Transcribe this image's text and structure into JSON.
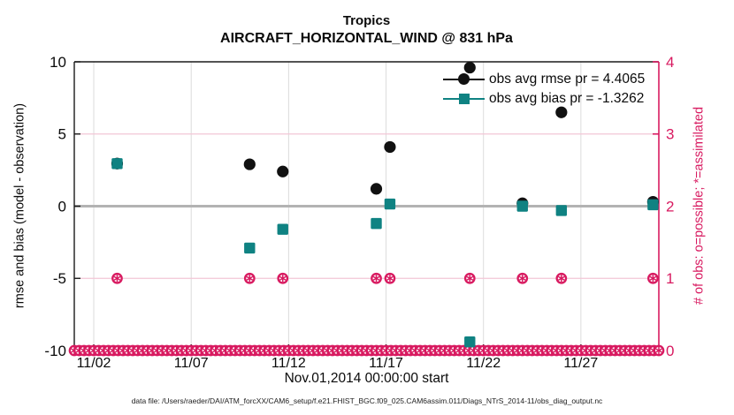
{
  "title": {
    "line1": "Tropics",
    "line2": "AIRCRAFT_HORIZONTAL_WIND @ 831 hPa"
  },
  "caption": "data file: /Users/raeder/DAI/ATM_forcXX/CAM6_setup/f.e21.FHIST_BGC.f09_025.CAM6assim.011/Diags_NTrS_2014-11/obs_diag_output.nc",
  "colors": {
    "pink": "#d81a60",
    "teal": "#0f8282",
    "black_marker": "#111111",
    "zero_line": "#b3b3b3",
    "v_grid": "#dcdcdc",
    "h_grid_pink": "#f3c6d6",
    "spine": "#1a1a1a"
  },
  "chart_data": {
    "type": "scatter",
    "title": "Tropics — AIRCRAFT_HORIZONTAL_WIND @ 831 hPa",
    "x_axis": {
      "label": "Nov.01,2014 00:00:00 start",
      "range_days": [
        1,
        31
      ],
      "ticks": [
        {
          "day": 2,
          "label": "11/02"
        },
        {
          "day": 7,
          "label": "11/07"
        },
        {
          "day": 12,
          "label": "11/12"
        },
        {
          "day": 17,
          "label": "11/17"
        },
        {
          "day": 22,
          "label": "11/22"
        },
        {
          "day": 27,
          "label": "11/27"
        }
      ]
    },
    "y_left": {
      "label": "rmse and bias (model - observation)",
      "range": [
        -10,
        10
      ],
      "ticks": [
        10,
        5,
        0,
        -5,
        -10
      ],
      "zero_line": 0
    },
    "y_right": {
      "label": "# of obs: o=possible; *=assimilated",
      "range": [
        0,
        4
      ],
      "ticks": [
        4,
        3,
        2,
        1,
        0
      ],
      "grid_at": [
        3,
        2,
        1
      ]
    },
    "series": [
      {
        "name": "obs avg rmse pr = 4.4065",
        "marker": "circle",
        "x_days": [
          3.2,
          10.0,
          11.7,
          16.5,
          17.2,
          21.3,
          24.0,
          26.0,
          30.7
        ],
        "values": [
          2.95,
          2.9,
          2.4,
          1.2,
          4.1,
          9.6,
          0.2,
          6.5,
          0.3
        ]
      },
      {
        "name": "obs avg bias pr = -1.3262",
        "marker": "square",
        "x_days": [
          3.2,
          10.0,
          11.7,
          16.5,
          17.2,
          21.3,
          24.0,
          26.0,
          30.7
        ],
        "values": [
          2.95,
          -2.9,
          -1.6,
          -1.2,
          0.15,
          -9.4,
          0.0,
          -0.3,
          0.1
        ]
      }
    ],
    "obs_counts": {
      "marker": "circle-with-asterisk",
      "level1_days": [
        3.2,
        10.0,
        11.7,
        16.5,
        17.2,
        21.3,
        24.0,
        26.0,
        30.7
      ],
      "level1_value": 1,
      "level0_row": {
        "start_day": 1.0,
        "end_day": 31.0,
        "step_days": 0.25,
        "value": 0
      }
    }
  }
}
